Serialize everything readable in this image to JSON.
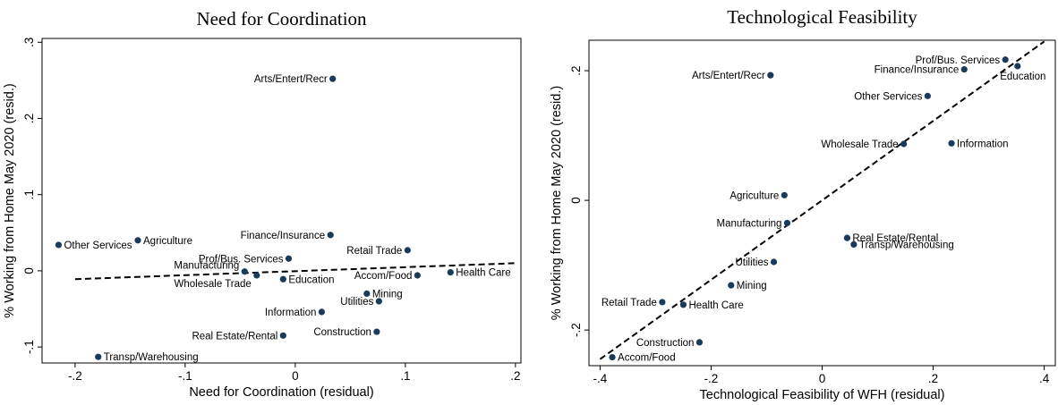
{
  "chart_data": [
    {
      "type": "scatter",
      "title": "Need for Coordination",
      "xlabel": "Need for Coordination (residual)",
      "ylabel": "% Working from Home May 2020 (resid.)",
      "xlim": [
        -0.23,
        0.205
      ],
      "ylim": [
        -0.121,
        0.305
      ],
      "xticks": [
        -0.2,
        -0.1,
        0,
        0.1,
        0.2
      ],
      "xtick_labels": [
        "-.2",
        "-.1",
        "0",
        ".1",
        ".2"
      ],
      "yticks": [
        -0.1,
        0,
        0.1,
        0.2,
        0.3
      ],
      "ytick_labels": [
        "-.1",
        "0",
        ".1",
        ".2",
        ".3"
      ],
      "grid": false,
      "fit_line": {
        "x": [
          -0.2,
          0.2
        ],
        "y": [
          -0.011,
          0.01
        ]
      },
      "points": [
        {
          "label": "Arts/Entert/Recr",
          "x": 0.034,
          "y": 0.252,
          "pos": "left"
        },
        {
          "label": "Finance/Insurance",
          "x": 0.032,
          "y": 0.047,
          "pos": "left"
        },
        {
          "label": "Other Services",
          "x": -0.215,
          "y": 0.034,
          "pos": "right"
        },
        {
          "label": "Agriculture",
          "x": -0.143,
          "y": 0.04,
          "pos": "right"
        },
        {
          "label": "Retail Trade",
          "x": 0.102,
          "y": 0.027,
          "pos": "left"
        },
        {
          "label": "Prof/Bus. Services",
          "x": -0.006,
          "y": 0.016,
          "pos": "left"
        },
        {
          "label": "Manufacturing",
          "x": -0.046,
          "y": -0.001,
          "pos": "left-up"
        },
        {
          "label": "Wholesale Trade",
          "x": -0.035,
          "y": -0.006,
          "pos": "left-down"
        },
        {
          "label": "Education",
          "x": -0.011,
          "y": -0.011,
          "pos": "right"
        },
        {
          "label": "Accom/Food",
          "x": 0.111,
          "y": -0.006,
          "pos": "left"
        },
        {
          "label": "Health Care",
          "x": 0.141,
          "y": -0.002,
          "pos": "right"
        },
        {
          "label": "Mining",
          "x": 0.065,
          "y": -0.03,
          "pos": "right"
        },
        {
          "label": "Utilities",
          "x": 0.076,
          "y": -0.04,
          "pos": "left"
        },
        {
          "label": "Information",
          "x": 0.024,
          "y": -0.054,
          "pos": "left"
        },
        {
          "label": "Construction",
          "x": 0.074,
          "y": -0.08,
          "pos": "left"
        },
        {
          "label": "Real Estate/Rental",
          "x": -0.011,
          "y": -0.085,
          "pos": "left"
        },
        {
          "label": "Transp/Warehousing",
          "x": -0.179,
          "y": -0.113,
          "pos": "right"
        }
      ]
    },
    {
      "type": "scatter",
      "title": "Technological Feasibility",
      "xlabel": "Technological Feasibility of WFH (residual)",
      "ylabel": "% Working from Home May 2020 (resid.)",
      "xlim": [
        -0.42,
        0.42
      ],
      "ylim": [
        -0.255,
        0.247
      ],
      "xticks": [
        -0.4,
        -0.2,
        0,
        0.2,
        0.4
      ],
      "xtick_labels": [
        "-.4",
        "-.2",
        "0",
        ".2",
        ".4"
      ],
      "yticks": [
        -0.2,
        0,
        0.2
      ],
      "ytick_labels": [
        "-.2",
        "0",
        ".2"
      ],
      "grid": false,
      "fit_line": {
        "x": [
          -0.4,
          0.4
        ],
        "y": [
          -0.245,
          0.245
        ]
      },
      "points": [
        {
          "label": "Prof/Bus. Services",
          "x": 0.33,
          "y": 0.217,
          "pos": "left"
        },
        {
          "label": "Education",
          "x": 0.352,
          "y": 0.207,
          "pos": "below"
        },
        {
          "label": "Finance/Insurance",
          "x": 0.256,
          "y": 0.202,
          "pos": "left"
        },
        {
          "label": "Arts/Entert/Recr",
          "x": -0.093,
          "y": 0.193,
          "pos": "left"
        },
        {
          "label": "Other Services",
          "x": 0.19,
          "y": 0.161,
          "pos": "left"
        },
        {
          "label": "Wholesale Trade",
          "x": 0.147,
          "y": 0.087,
          "pos": "left"
        },
        {
          "label": "Information",
          "x": 0.233,
          "y": 0.088,
          "pos": "right"
        },
        {
          "label": "Agriculture",
          "x": -0.068,
          "y": 0.008,
          "pos": "left"
        },
        {
          "label": "Manufacturing",
          "x": -0.063,
          "y": -0.035,
          "pos": "left"
        },
        {
          "label": "Real Estate/Rental",
          "x": 0.045,
          "y": -0.058,
          "pos": "right"
        },
        {
          "label": "Transp/Warehousing",
          "x": 0.057,
          "y": -0.068,
          "pos": "right"
        },
        {
          "label": "Utilities",
          "x": -0.087,
          "y": -0.095,
          "pos": "left"
        },
        {
          "label": "Mining",
          "x": -0.164,
          "y": -0.131,
          "pos": "right"
        },
        {
          "label": "Retail Trade",
          "x": -0.288,
          "y": -0.157,
          "pos": "left"
        },
        {
          "label": "Health Care",
          "x": -0.25,
          "y": -0.161,
          "pos": "right"
        },
        {
          "label": "Construction",
          "x": -0.221,
          "y": -0.219,
          "pos": "left"
        },
        {
          "label": "Accom/Food",
          "x": -0.378,
          "y": -0.242,
          "pos": "right"
        }
      ]
    }
  ]
}
